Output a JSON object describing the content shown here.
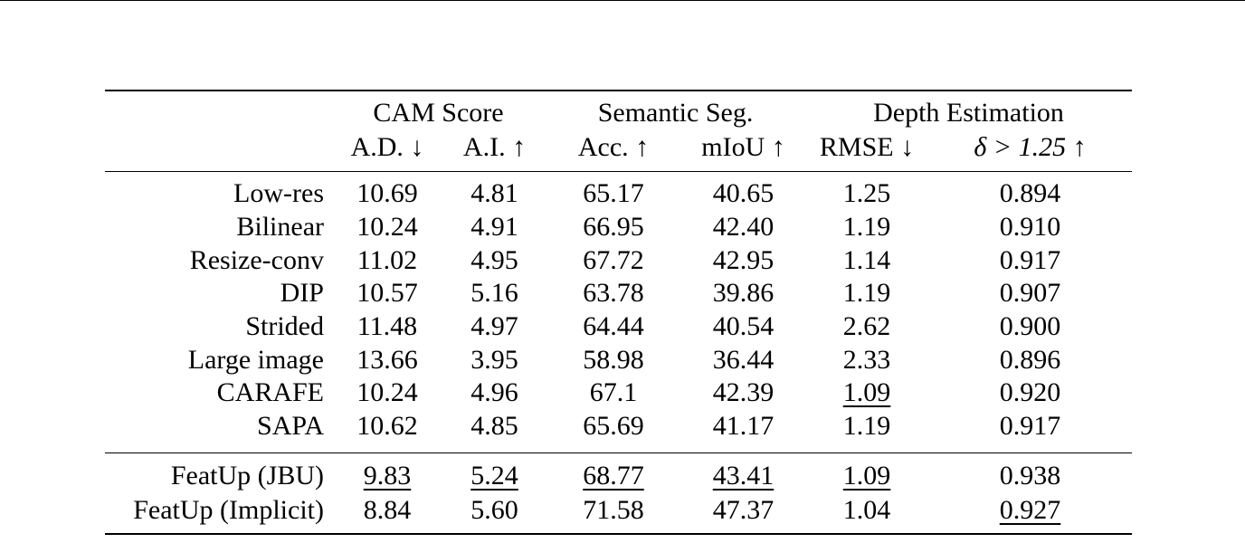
{
  "column_groups": [
    {
      "label": "CAM Score"
    },
    {
      "label": "Semantic Seg."
    },
    {
      "label": "Depth Estimation"
    }
  ],
  "metrics": [
    {
      "label": "A.D. ↓"
    },
    {
      "label": "A.I. ↑"
    },
    {
      "label": "Acc. ↑"
    },
    {
      "label": "mIoU ↑"
    },
    {
      "label": "RMSE ↓"
    },
    {
      "label": "δ > 1.25 ↑"
    }
  ],
  "rows": [
    {
      "name": "Low-res",
      "values": [
        "10.69",
        "4.81",
        "65.17",
        "40.65",
        "1.25",
        "0.894"
      ]
    },
    {
      "name": "Bilinear",
      "values": [
        "10.24",
        "4.91",
        "66.95",
        "42.40",
        "1.19",
        "0.910"
      ]
    },
    {
      "name": "Resize-conv",
      "values": [
        "11.02",
        "4.95",
        "67.72",
        "42.95",
        "1.14",
        "0.917"
      ]
    },
    {
      "name": "DIP",
      "values": [
        "10.57",
        "5.16",
        "63.78",
        "39.86",
        "1.19",
        "0.907"
      ]
    },
    {
      "name": "Strided",
      "values": [
        "11.48",
        "4.97",
        "64.44",
        "40.54",
        "2.62",
        "0.900"
      ]
    },
    {
      "name": "Large image",
      "values": [
        "13.66",
        "3.95",
        "58.98",
        "36.44",
        "2.33",
        "0.896"
      ]
    },
    {
      "name": "CARAFE",
      "values": [
        "10.24",
        "4.96",
        "67.1",
        "42.39",
        "1.09",
        "0.920"
      ]
    },
    {
      "name": "SAPA",
      "values": [
        "10.62",
        "4.85",
        "65.69",
        "41.17",
        "1.19",
        "0.917"
      ]
    }
  ],
  "featup_rows": [
    {
      "name": "FeatUp (JBU)",
      "values": [
        "9.83",
        "5.24",
        "68.77",
        "43.41",
        "1.09",
        "0.938"
      ]
    },
    {
      "name": "FeatUp (Implicit)",
      "values": [
        "8.84",
        "5.60",
        "71.58",
        "47.37",
        "1.04",
        "0.927"
      ]
    }
  ]
}
